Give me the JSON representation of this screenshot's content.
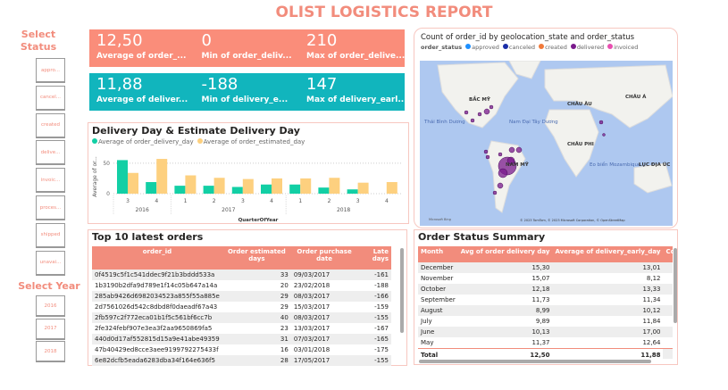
{
  "title": "OLIST LOGISTICS REPORT",
  "sidebar": {
    "status_heading": "Select Status",
    "status_items": [
      "appro...",
      "cancel...",
      "created",
      "delive...",
      "invoic...",
      "proces...",
      "shipped",
      "unavai..."
    ],
    "year_heading": "Select Year",
    "years": [
      "2016",
      "2017",
      "2018"
    ]
  },
  "kpi_top": [
    {
      "value": "12,50",
      "label": "Average of order_..."
    },
    {
      "value": "0",
      "label": "Min of order_deliv..."
    },
    {
      "value": "210",
      "label": "Max of order_delive..."
    }
  ],
  "kpi_bottom": [
    {
      "value": "11,88",
      "label": "Average of deliver..."
    },
    {
      "value": "-188",
      "label": "Min of delivery_e..."
    },
    {
      "value": "147",
      "label": "Max of delivery_earl..."
    }
  ],
  "colors": {
    "accent": "#f28c7c",
    "teal": "#11b5bd",
    "green": "#12cfa5",
    "yellow": "#fdd07f"
  },
  "chart_data": {
    "type": "bar",
    "title": "Delivery Day & Estimate Delivery Day",
    "xlabel": "QuarterOfYear",
    "ylabel": "Average of or...",
    "ylim": [
      0,
      60
    ],
    "yticks": [
      "0",
      "50"
    ],
    "categories": [
      "3",
      "4",
      "1",
      "2",
      "3",
      "4",
      "1",
      "2",
      "3",
      "4"
    ],
    "years": [
      {
        "label": "2016",
        "span": 2
      },
      {
        "label": "2017",
        "span": 4
      },
      {
        "label": "2018",
        "span": 4
      }
    ],
    "series": [
      {
        "name": "Average of order_delivery_day",
        "color": "#12cfa5",
        "values": [
          55,
          19,
          13,
          13,
          11,
          15,
          15,
          10,
          7,
          0
        ]
      },
      {
        "name": "Average of order_estimated_day",
        "color": "#fdd07f",
        "values": [
          34,
          57,
          30,
          26,
          24,
          25,
          25,
          26,
          18,
          19
        ]
      }
    ]
  },
  "map": {
    "title": "Count of order_id by geolocation_state and order_status",
    "legend_title": "order_status",
    "legend": [
      {
        "label": "approved",
        "color": "#1e90ff"
      },
      {
        "label": "canceled",
        "color": "#1a2ea8"
      },
      {
        "label": "created",
        "color": "#f07a3a"
      },
      {
        "label": "delivered",
        "color": "#7a1a8c"
      },
      {
        "label": "invoiced",
        "color": "#e84fb0"
      }
    ],
    "labels": [
      "BẮC MỸ",
      "CHÂU ÂU",
      "CHÂU Á",
      "Thái Bình Dương",
      "Nam Đại Tây Dương",
      "CHÂU PHI",
      "NAM MỸ",
      "Eo biển Mozambique",
      "LỤC ĐỊA ÚC"
    ],
    "attribution": "© 2023 TomTom, © 2023 Microsoft Corporation, © OpenStreetMap",
    "bing": "Microsoft Bing"
  },
  "orders": {
    "title": "Top 10 latest orders",
    "columns": [
      "order_id",
      "Order estimated days",
      "Order purchase date",
      "Late days"
    ],
    "rows": [
      [
        "0f4519c5f1c541ddec9f21b3bddd533a",
        "33",
        "09/03/2017",
        "-161"
      ],
      [
        "1b3190b2dfa9d789e1f14c05b647a14a",
        "20",
        "23/02/2018",
        "-188"
      ],
      [
        "285ab9426d6982034523a855f55a885e",
        "29",
        "08/03/2017",
        "-166"
      ],
      [
        "2d7561026d542c8dbd8f0daeadf67a43",
        "29",
        "15/03/2017",
        "-159"
      ],
      [
        "2fb597c2f772eca01b1f5c561bf6cc7b",
        "40",
        "08/03/2017",
        "-155"
      ],
      [
        "2fe324febf907e3ea3f2aa9650869fa5",
        "23",
        "13/03/2017",
        "-167"
      ],
      [
        "440d0d17af552815d15a9e41abe49359",
        "31",
        "07/03/2017",
        "-165"
      ],
      [
        "47b40429ed8cce3aee9199792275433f",
        "16",
        "03/01/2018",
        "-175"
      ],
      [
        "6e82dcfb5eada6283dba34f164e636f5",
        "28",
        "17/05/2017",
        "-155"
      ]
    ]
  },
  "summary": {
    "title": "Order Status Summary",
    "columns": [
      "Month",
      "Avg of order delivery day",
      "Average of delivery_early_day",
      "Count o"
    ],
    "rows": [
      [
        "December",
        "15,30",
        "13,01"
      ],
      [
        "November",
        "15,07",
        "8,12"
      ],
      [
        "October",
        "12,18",
        "13,33"
      ],
      [
        "September",
        "11,73",
        "11,34"
      ],
      [
        "August",
        "8,99",
        "10,12"
      ],
      [
        "July",
        "9,89",
        "11,84"
      ],
      [
        "June",
        "10,13",
        "17,00"
      ],
      [
        "May",
        "11,37",
        "12,64"
      ]
    ],
    "total": [
      "Total",
      "12,50",
      "11,88"
    ]
  }
}
